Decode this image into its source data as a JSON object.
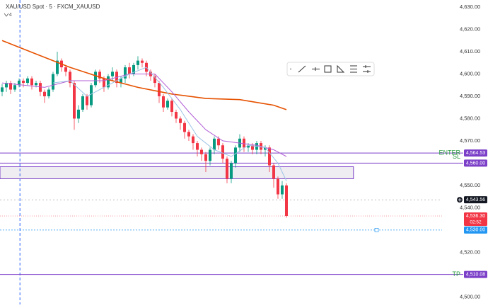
{
  "header": {
    "title": "XAU/USD Spot · 5 · FXCM_XAUUSD",
    "indicator_count": "4"
  },
  "chart_data": {
    "type": "candlestick",
    "xlim": [
      -0.5,
      103.67
    ],
    "ylim": [
      4496.6,
      4633.2
    ],
    "yticks": [
      {
        "value": 4630,
        "label": "4,630.00"
      },
      {
        "value": 4620,
        "label": "4,620.00"
      },
      {
        "value": 4610,
        "label": "4,610.00"
      },
      {
        "value": 4600,
        "label": "4,600.00"
      },
      {
        "value": 4590,
        "label": "4,590.00"
      },
      {
        "value": 4580,
        "label": "4,580.00"
      },
      {
        "value": 4570,
        "label": "4,570.00"
      },
      {
        "value": 4550,
        "label": "4,550.00"
      },
      {
        "value": 4540,
        "label": "4,540.00"
      },
      {
        "value": 4520,
        "label": "4,520.00"
      },
      {
        "value": 4500,
        "label": "4,500.00"
      }
    ],
    "up_color": "#089981",
    "down_color": "#f23645",
    "open": [
      4592,
      4594,
      4596,
      4593,
      4595,
      4597,
      4596,
      4598,
      4595,
      4596,
      4592,
      4590,
      4593,
      4600,
      4606,
      4603,
      4601,
      4596,
      4580,
      4584,
      4590,
      4586,
      4595,
      4601,
      4598,
      4594,
      4599,
      4601,
      4596,
      4598,
      4603,
      4600,
      4604,
      4606,
      4605,
      4601,
      4599,
      4596,
      4590,
      4585,
      4588,
      4583,
      4580,
      4578,
      4574,
      4572,
      4569,
      4566,
      4564,
      4561,
      4566,
      4571,
      4568,
      4562,
      4553,
      4560,
      4567,
      4571,
      4567,
      4568,
      4566,
      4569,
      4566,
      4567,
      4559,
      4553,
      4546,
      4550
    ],
    "high": [
      4595.5,
      4597,
      4597,
      4596,
      4598,
      4598,
      4599,
      4599,
      4597,
      4597,
      4593,
      4594,
      4601,
      4610,
      4607,
      4604,
      4602,
      4597,
      4586,
      4591,
      4591,
      4596,
      4602,
      4602,
      4599,
      4600,
      4603,
      4602,
      4599,
      4604,
      4605,
      4605,
      4608,
      4607,
      4606,
      4602,
      4600,
      4597,
      4591,
      4589,
      4589,
      4584,
      4581,
      4579,
      4575,
      4573,
      4570,
      4567,
      4565,
      4567,
      4572,
      4572,
      4569,
      4563,
      4561,
      4568,
      4573,
      4572,
      4569,
      4569,
      4570,
      4570,
      4568,
      4568,
      4560,
      4554,
      4552,
      4551
    ],
    "low": [
      4590,
      4592,
      4591,
      4592,
      4594,
      4594,
      4595,
      4593,
      4594,
      4590,
      4587,
      4589,
      4592,
      4599,
      4601,
      4599,
      4594,
      4575,
      4578,
      4583,
      4584,
      4585,
      4594,
      4596,
      4592,
      4593,
      4597,
      4594,
      4594,
      4596,
      4598,
      4599,
      4602,
      4603,
      4599,
      4597,
      4594,
      4587,
      4583,
      4584,
      4581,
      4578,
      4575,
      4571,
      4570,
      4566,
      4563,
      4561,
      4556,
      4559,
      4564,
      4566,
      4560,
      4551,
      4551,
      4558,
      4565,
      4565,
      4565,
      4564,
      4564,
      4564,
      4563,
      4556,
      4549,
      4544,
      4544,
      4535.5
    ],
    "close": [
      4594,
      4596,
      4593,
      4595,
      4597,
      4596,
      4598,
      4595,
      4596,
      4592,
      4590,
      4593,
      4600,
      4606,
      4603,
      4601,
      4596,
      4580,
      4584,
      4590,
      4586,
      4595,
      4601,
      4598,
      4594,
      4599,
      4601,
      4596,
      4598,
      4603,
      4600,
      4604,
      4606,
      4605,
      4601,
      4599,
      4596,
      4590,
      4585,
      4588,
      4583,
      4580,
      4578,
      4574,
      4572,
      4569,
      4566,
      4564,
      4561,
      4566,
      4571,
      4568,
      4562,
      4553,
      4560,
      4567,
      4571,
      4567,
      4568,
      4566,
      4569,
      4566,
      4567,
      4559,
      4553,
      4546,
      4550,
      4536.3
    ],
    "lines": [
      {
        "color": "#e65100",
        "x": [
          0,
          8,
          16,
          24,
          32,
          40,
          48,
          56,
          64,
          67
        ],
        "values": [
          4615,
          4609,
          4603,
          4598,
          4594,
          4591,
          4589,
          4588.5,
          4586,
          4584
        ]
      },
      {
        "color": "#b25fd6",
        "x": [
          0,
          10,
          16,
          24,
          30,
          36,
          40,
          44,
          48,
          52,
          56,
          60,
          64,
          67
        ],
        "values": [
          4596,
          4594,
          4597,
          4597,
          4600,
          4600,
          4592,
          4583,
          4575,
          4570,
          4569,
          4568,
          4566,
          4563
        ]
      },
      {
        "color": "#9cc3e6",
        "x": [
          12,
          16,
          20,
          24,
          30,
          34,
          38,
          42,
          46,
          50,
          54,
          58,
          62,
          65,
          67
        ],
        "values": [
          4596,
          4597,
          4590,
          4594,
          4600,
          4603,
          4594,
          4584,
          4572,
          4566,
          4563,
          4568,
          4567,
          4560,
          4552
        ]
      }
    ],
    "levels": [
      {
        "name": "ENTER",
        "color": "#7b3fc8",
        "price": {
          "value": 4564.53,
          "label": "4,564.53"
        }
      },
      {
        "name": "SL",
        "color": "#7b3fc8",
        "price": {
          "value": 4560,
          "label": "4,560.00"
        }
      },
      {
        "name": "TP",
        "color": "#7b3fc8",
        "price": {
          "value": 4510.08,
          "label": "4,510.08"
        }
      }
    ],
    "zone": {
      "top": 4558.4,
      "bottom": 4553,
      "x_end": 82.8
    },
    "vline_x": 4.2,
    "alert": {
      "value": 4530,
      "label": "4,530.00"
    },
    "crosshair": {
      "value": 4543.56,
      "label": "4,543.56"
    },
    "current": {
      "value": 4536.3,
      "label": "4,536.30"
    },
    "countdown": "02:52"
  }
}
